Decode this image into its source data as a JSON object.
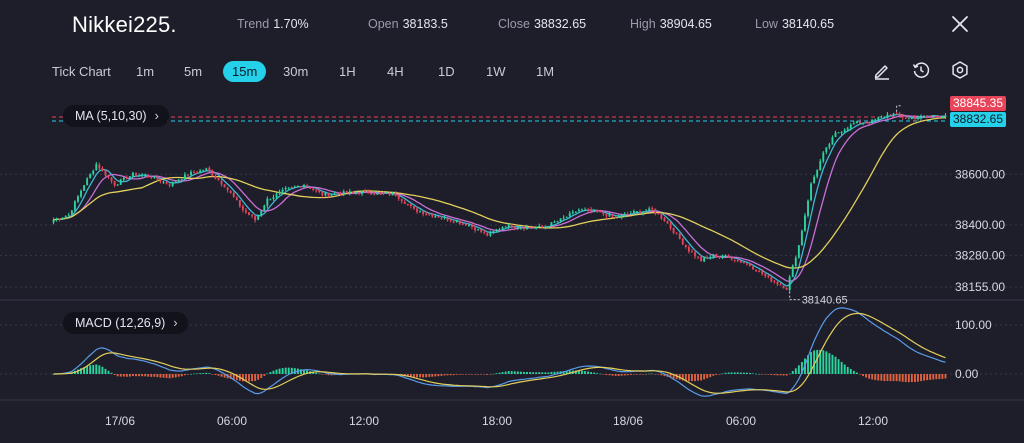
{
  "header": {
    "symbol": "Nikkei225.",
    "stats": [
      {
        "key": "Trend",
        "value": "1.70%"
      },
      {
        "key": "Open",
        "value": "38183.5"
      },
      {
        "key": "Close",
        "value": "38832.65"
      },
      {
        "key": "High",
        "value": "38904.65"
      },
      {
        "key": "Low",
        "value": "38140.65"
      }
    ]
  },
  "toolbar": {
    "chart_type_label": "Tick Chart",
    "timeframes": [
      "1m",
      "5m",
      "15m",
      "30m",
      "1H",
      "4H",
      "1D",
      "1W",
      "1M"
    ],
    "active_timeframe": "15m",
    "icons": [
      "draw-pen-icon",
      "history-icon",
      "settings-icon"
    ]
  },
  "indicators": {
    "ma_label": "MA",
    "ma_params": "(5,10,30)",
    "macd_label": "MACD",
    "macd_params": "(12,26,9)"
  },
  "colors": {
    "background": "#1d1e2a",
    "bull": "#2bd69e",
    "bear": "#e8445a",
    "ma5": "#3fb7d8",
    "ma10": "#c86fd6",
    "ma30": "#e3cf5c",
    "accent": "#25d0ea"
  },
  "chart_data": {
    "type": "candlestick",
    "price_axis_ticks": [
      "38600.00",
      "38400.00",
      "38280.00",
      "38155.00"
    ],
    "macd_axis_ticks": [
      "100.00",
      "0.00"
    ],
    "time_labels": [
      "17/06",
      "06:00",
      "12:00",
      "18:00",
      "18/06",
      "06:00",
      "12:00"
    ],
    "last_price_tag": "38845.35",
    "close_price_tag": "38832.65",
    "high_marker": "38904.65",
    "low_marker": "38140.65",
    "ma_periods": [
      5,
      10,
      30
    ],
    "macd_params": [
      12,
      26,
      9
    ],
    "price_anchors": [
      [
        0,
        38420
      ],
      [
        5,
        38440
      ],
      [
        10,
        38560
      ],
      [
        14,
        38640
      ],
      [
        20,
        38560
      ],
      [
        26,
        38600
      ],
      [
        32,
        38590
      ],
      [
        38,
        38560
      ],
      [
        44,
        38600
      ],
      [
        50,
        38620
      ],
      [
        56,
        38555
      ],
      [
        62,
        38460
      ],
      [
        66,
        38420
      ],
      [
        70,
        38500
      ],
      [
        76,
        38540
      ],
      [
        82,
        38560
      ],
      [
        88,
        38520
      ],
      [
        94,
        38525
      ],
      [
        100,
        38530
      ],
      [
        106,
        38525
      ],
      [
        112,
        38520
      ],
      [
        118,
        38460
      ],
      [
        124,
        38440
      ],
      [
        130,
        38420
      ],
      [
        136,
        38400
      ],
      [
        142,
        38360
      ],
      [
        148,
        38400
      ],
      [
        154,
        38390
      ],
      [
        160,
        38390
      ],
      [
        166,
        38420
      ],
      [
        172,
        38460
      ],
      [
        178,
        38450
      ],
      [
        184,
        38430
      ],
      [
        190,
        38450
      ],
      [
        196,
        38460
      ],
      [
        200,
        38420
      ],
      [
        204,
        38360
      ],
      [
        208,
        38300
      ],
      [
        212,
        38260
      ],
      [
        216,
        38280
      ],
      [
        222,
        38270
      ],
      [
        228,
        38240
      ],
      [
        234,
        38190
      ],
      [
        240,
        38150
      ],
      [
        244,
        38320
      ],
      [
        248,
        38560
      ],
      [
        252,
        38680
      ],
      [
        256,
        38760
      ],
      [
        262,
        38800
      ],
      [
        268,
        38810
      ],
      [
        274,
        38840
      ],
      [
        280,
        38820
      ],
      [
        286,
        38830
      ],
      [
        292,
        38832
      ]
    ]
  }
}
